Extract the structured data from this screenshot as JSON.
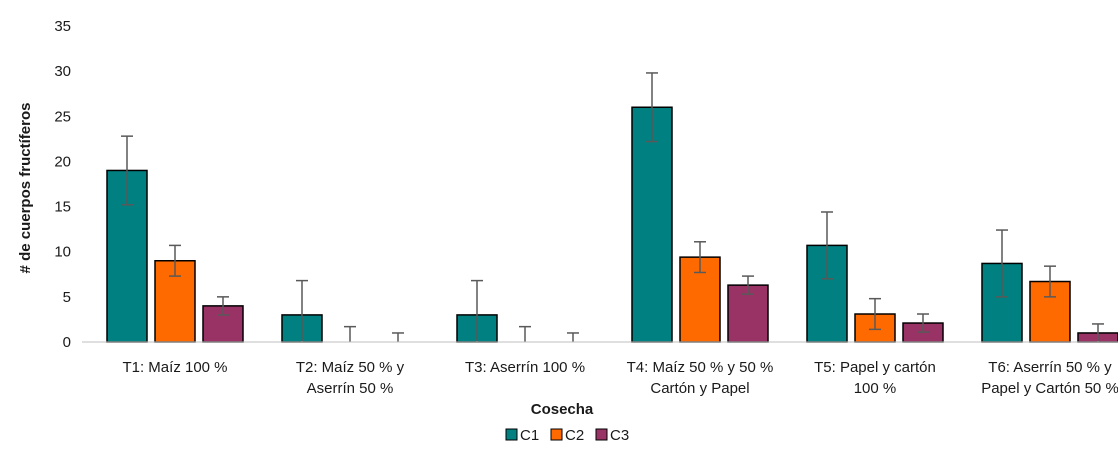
{
  "chart_data": {
    "type": "bar",
    "xlabel": "Cosecha",
    "ylabel": "# de cuerpos fructíferos",
    "ylim": [
      0,
      35
    ],
    "yticks": [
      "0",
      "5",
      "10",
      "15",
      "20",
      "25",
      "30",
      "35"
    ],
    "grid": false,
    "legend_position": "bottom",
    "categories": [
      [
        "T1: Maíz 100 %"
      ],
      [
        "T2: Maíz 50 % y",
        "Aserrín 50 %"
      ],
      [
        "T3: Aserrín 100 %"
      ],
      [
        "T4: Maíz 50 % y 50 %",
        "Cartón y Papel"
      ],
      [
        "T5: Papel y cartón",
        "100 %"
      ],
      [
        "T6: Aserrín 50 % y",
        "Papel y Cartón 50 %"
      ]
    ],
    "series": [
      {
        "name": "C1",
        "color": "#008080",
        "values": [
          19,
          3,
          3,
          26,
          10.7,
          8.7
        ],
        "errors": [
          3.8,
          3.8,
          3.8,
          3.8,
          3.7,
          3.7
        ]
      },
      {
        "name": "C2",
        "color": "#ff6a00",
        "values": [
          9,
          0,
          0,
          9.4,
          3.1,
          6.7
        ],
        "errors": [
          1.7,
          1.7,
          1.7,
          1.7,
          1.7,
          1.7
        ]
      },
      {
        "name": "C3",
        "color": "#993366",
        "values": [
          4,
          0,
          0,
          6.3,
          2.1,
          1
        ],
        "errors": [
          1,
          1,
          1,
          1,
          1,
          1
        ]
      }
    ]
  }
}
